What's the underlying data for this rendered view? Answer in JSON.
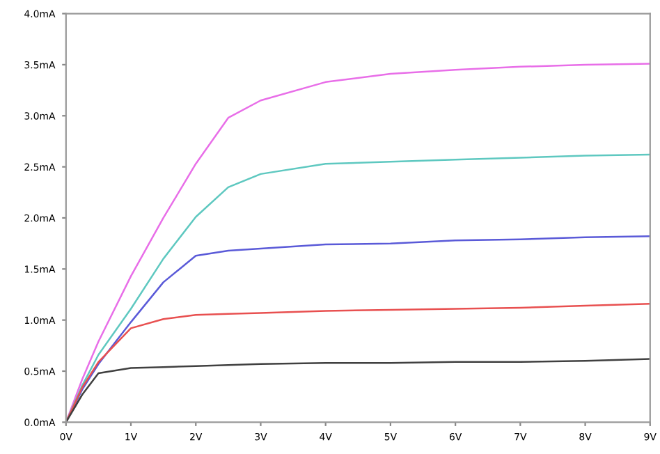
{
  "chart_data": {
    "type": "line",
    "xlim": [
      0,
      9
    ],
    "ylim": [
      0,
      4
    ],
    "xticks": [
      {
        "value": 0,
        "label": "0V"
      },
      {
        "value": 1,
        "label": "1V"
      },
      {
        "value": 2,
        "label": "2V"
      },
      {
        "value": 3,
        "label": "3V"
      },
      {
        "value": 4,
        "label": "4V"
      },
      {
        "value": 5,
        "label": "5V"
      },
      {
        "value": 6,
        "label": "6V"
      },
      {
        "value": 7,
        "label": "7V"
      },
      {
        "value": 8,
        "label": "8V"
      },
      {
        "value": 9,
        "label": "9V"
      }
    ],
    "yticks": [
      {
        "value": 0,
        "label": "0.0mA"
      },
      {
        "value": 0.5,
        "label": "0.5mA"
      },
      {
        "value": 1,
        "label": "1.0mA"
      },
      {
        "value": 1.5,
        "label": "1.5mA"
      },
      {
        "value": 2,
        "label": "2.0mA"
      },
      {
        "value": 2.5,
        "label": "2.5mA"
      },
      {
        "value": 3,
        "label": "3.0mA"
      },
      {
        "value": 3.5,
        "label": "3.5mA"
      },
      {
        "value": 4,
        "label": "4.0mA"
      }
    ],
    "grid": false,
    "marker": "none",
    "line_style": "solid",
    "x": [
      0,
      0.25,
      0.5,
      1,
      1.5,
      2,
      2.5,
      3,
      4,
      5,
      6,
      7,
      8,
      9
    ],
    "series": [
      {
        "color": "#e86ee8",
        "values": [
          0,
          0.42,
          0.79,
          1.43,
          2.0,
          2.53,
          2.98,
          3.15,
          3.33,
          3.41,
          3.45,
          3.48,
          3.5,
          3.51
        ]
      },
      {
        "color": "#5ec8c0",
        "values": [
          0,
          0.36,
          0.66,
          1.11,
          1.6,
          2.01,
          2.3,
          2.43,
          2.53,
          2.55,
          2.57,
          2.59,
          2.61,
          2.62
        ]
      },
      {
        "color": "#5a5ad8",
        "values": [
          0,
          0.32,
          0.57,
          0.98,
          1.37,
          1.63,
          1.68,
          1.7,
          1.74,
          1.75,
          1.78,
          1.79,
          1.81,
          1.82
        ]
      },
      {
        "color": "#e85050",
        "values": [
          0,
          0.34,
          0.59,
          0.92,
          1.01,
          1.05,
          1.06,
          1.07,
          1.09,
          1.1,
          1.11,
          1.12,
          1.14,
          1.16
        ]
      },
      {
        "color": "#404040",
        "values": [
          0,
          0.27,
          0.48,
          0.53,
          0.54,
          0.55,
          0.56,
          0.57,
          0.58,
          0.58,
          0.59,
          0.59,
          0.6,
          0.62
        ]
      }
    ]
  }
}
